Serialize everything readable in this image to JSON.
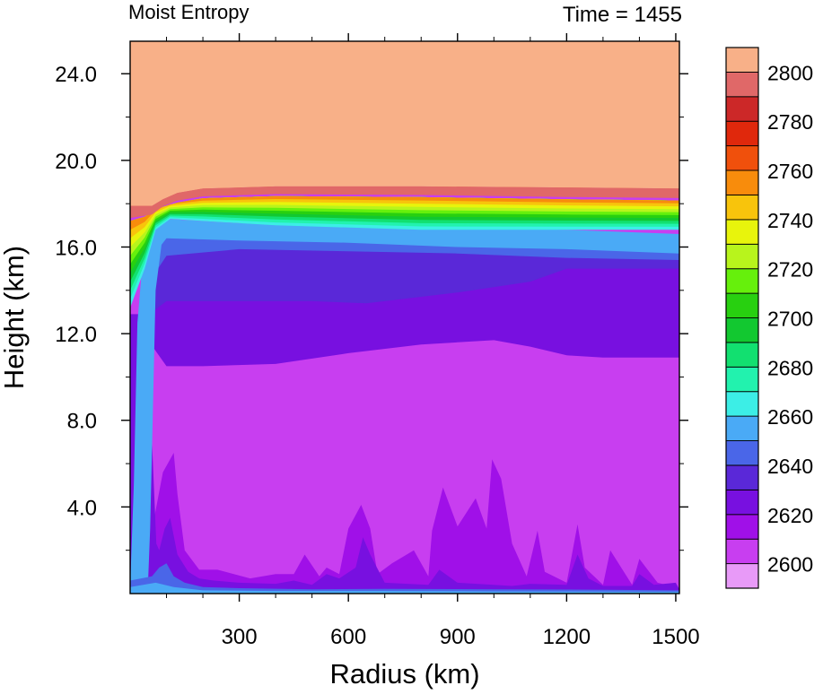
{
  "chart_data": {
    "type": "heatmap",
    "title_left": "Moist Entropy",
    "title_right": "Time = 1455",
    "xlabel": "Radius (km)",
    "ylabel": "Height (km)",
    "xlim": [
      0,
      1510
    ],
    "ylim": [
      0,
      25.5
    ],
    "xticks": [
      300,
      600,
      900,
      1200,
      1500
    ],
    "xtick_labels": [
      "300",
      "600",
      "900",
      "1200",
      "1500"
    ],
    "yticks": [
      4,
      8,
      12,
      16,
      20,
      24
    ],
    "ytick_labels": [
      "4.0",
      "8.0",
      "12.0",
      "16.0",
      "20.0",
      "24.0"
    ],
    "colorbar": {
      "levels": [
        2600,
        2610,
        2620,
        2630,
        2640,
        2650,
        2660,
        2670,
        2680,
        2690,
        2700,
        2710,
        2720,
        2730,
        2740,
        2750,
        2760,
        2770,
        2780,
        2790,
        2800
      ],
      "labels": [
        "2600",
        "2620",
        "2640",
        "2660",
        "2680",
        "2700",
        "2720",
        "2740",
        "2760",
        "2780",
        "2800"
      ],
      "colors": [
        "#e89af8",
        "#c83ef0",
        "#a010e8",
        "#7810e0",
        "#5a28d8",
        "#4a66e8",
        "#4aaaf6",
        "#3ceee6",
        "#22f2ae",
        "#12e070",
        "#12c830",
        "#28d010",
        "#66f00c",
        "#b8f41c",
        "#e8f40c",
        "#f8c40c",
        "#f88c0c",
        "#f0500c",
        "#e0280c",
        "#cc2828",
        "#e06868",
        "#f8b088"
      ]
    },
    "fields": [
      {
        "name": "background",
        "level": 2600
      },
      {
        "name": "lower-band-2610",
        "level": 2610
      },
      {
        "name": "upper-band-2620",
        "level": 2620
      },
      {
        "name": "band-2630",
        "level": 2630
      },
      {
        "name": "band-2640",
        "level": 2640
      },
      {
        "name": "band-2650",
        "level": 2650
      },
      {
        "name": "band-2660",
        "level": 2660
      },
      {
        "name": "band-2670",
        "level": 2670
      },
      {
        "name": "band-2680",
        "level": 2680
      },
      {
        "name": "band-2690",
        "level": 2690
      },
      {
        "name": "band-2700",
        "level": 2700
      },
      {
        "name": "band-2710",
        "level": 2710
      },
      {
        "name": "band-2720",
        "level": 2720
      },
      {
        "name": "band-2730",
        "level": 2730
      },
      {
        "name": "band-2740",
        "level": 2740
      },
      {
        "name": "band-2750",
        "level": 2750
      },
      {
        "name": "band-2760",
        "level": 2760
      },
      {
        "name": "band-2770",
        "level": 2770
      },
      {
        "name": "band-2780",
        "level": 2780
      },
      {
        "name": "band-2790",
        "level": 2790
      },
      {
        "name": "stratosphere",
        "level": 2800
      }
    ],
    "grid": false
  }
}
